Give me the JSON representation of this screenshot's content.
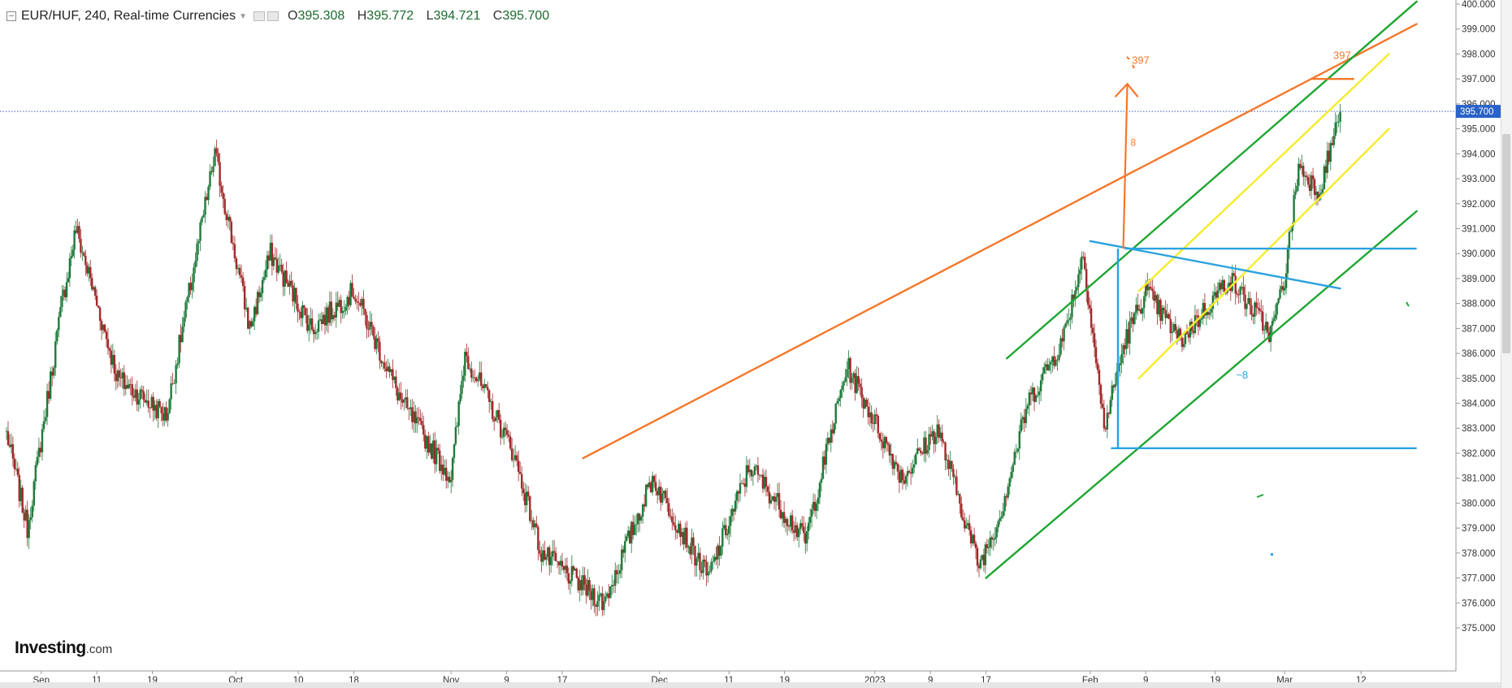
{
  "header": {
    "symbol": "EUR/HUF, 240, Real-time Currencies",
    "open_label": "O",
    "open": "395.308",
    "high_label": "H",
    "high": "395.772",
    "low_label": "L",
    "low": "394.721",
    "close_label": "C",
    "close": "395.700"
  },
  "logo": {
    "main": "Investing",
    "domain": ".com"
  },
  "chart_data": {
    "type": "candlestick",
    "title": "EUR/HUF, 240, Real-time Currencies",
    "ylim": [
      374.6,
      400.2
    ],
    "y_ticks": [
      "375.000",
      "376.000",
      "377.000",
      "378.000",
      "379.000",
      "380.000",
      "381.000",
      "382.000",
      "383.000",
      "384.000",
      "385.000",
      "386.000",
      "387.000",
      "388.000",
      "389.000",
      "390.000",
      "391.000",
      "392.000",
      "393.000",
      "394.000",
      "395.000",
      "396.000",
      "397.000",
      "398.000",
      "399.000",
      "400.000"
    ],
    "x_ticks": [
      "Sep",
      "11",
      "19",
      "Oct",
      "10",
      "18",
      "Nov",
      "9",
      "17",
      "Dec",
      "11",
      "19",
      "2023",
      "9",
      "17",
      "Feb",
      "9",
      "19",
      "Mar",
      "12"
    ],
    "last_price": "395.700",
    "colors": {
      "up": "#1f7a3a",
      "down": "#a12a2a",
      "orange": "#f5772a",
      "green": "#1ea632",
      "yellow": "#f4ec2a",
      "blue": "#2aa2e0",
      "price_line": "#3a5fbf"
    },
    "key_points": [
      {
        "x": "Aug 29",
        "y": 382.8
      },
      {
        "x": "Sep 1",
        "y": 379.0
      },
      {
        "x": "Sep 6",
        "y": 388.0
      },
      {
        "x": "Sep 8",
        "y": 391.0
      },
      {
        "x": "Sep 14",
        "y": 385.0
      },
      {
        "x": "Sep 21",
        "y": 383.5
      },
      {
        "x": "Sep 28",
        "y": 394.0
      },
      {
        "x": "Oct 3",
        "y": 387.0
      },
      {
        "x": "Oct 6",
        "y": 390.0
      },
      {
        "x": "Oct 12",
        "y": 387.0
      },
      {
        "x": "Oct 18",
        "y": 388.5
      },
      {
        "x": "Oct 25",
        "y": 384.0
      },
      {
        "x": "Nov 1",
        "y": 381.0
      },
      {
        "x": "Nov 3",
        "y": 386.0
      },
      {
        "x": "Nov 10",
        "y": 382.0
      },
      {
        "x": "Nov 14",
        "y": 378.0
      },
      {
        "x": "Nov 23",
        "y": 376.0
      },
      {
        "x": "Nov 30",
        "y": 381.0
      },
      {
        "x": "Dec 8",
        "y": 377.0
      },
      {
        "x": "Dec 14",
        "y": 381.5
      },
      {
        "x": "Dec 22",
        "y": 378.5
      },
      {
        "x": "Dec 28",
        "y": 385.5
      },
      {
        "x": "Jan 5",
        "y": 381.0
      },
      {
        "x": "Jan 10",
        "y": 383.0
      },
      {
        "x": "Jan 16",
        "y": 377.5
      },
      {
        "x": "Jan 19",
        "y": 379.5
      },
      {
        "x": "Jan 23",
        "y": 384.0
      },
      {
        "x": "Jan 28",
        "y": 386.5
      },
      {
        "x": "Jan 31",
        "y": 390.0
      },
      {
        "x": "Feb 3",
        "y": 383.0
      },
      {
        "x": "Feb 6",
        "y": 386.5
      },
      {
        "x": "Feb 9",
        "y": 388.5
      },
      {
        "x": "Feb 14",
        "y": 386.5
      },
      {
        "x": "Feb 21",
        "y": 389.0
      },
      {
        "x": "Feb 27",
        "y": 386.8
      },
      {
        "x": "Mar 1",
        "y": 389.0
      },
      {
        "x": "Mar 3",
        "y": 393.5
      },
      {
        "x": "Mar 6",
        "y": 392.5
      },
      {
        "x": "Mar 9",
        "y": 395.7
      }
    ],
    "annotations": [
      {
        "type": "trendline",
        "color": "orange",
        "from": {
          "x": "Nov 20",
          "y": 381.8
        },
        "to": {
          "x": "Mar 20",
          "y": 399.2
        }
      },
      {
        "type": "trendline",
        "color": "green",
        "from": {
          "x": "Jan 17",
          "y": 377.0
        },
        "to": {
          "x": "Mar 20",
          "y": 391.7
        }
      },
      {
        "type": "trendline",
        "color": "green",
        "from": {
          "x": "Jan 20",
          "y": 385.8
        },
        "to": {
          "x": "Mar 20",
          "y": 400.1
        }
      },
      {
        "type": "trendline",
        "color": "yellow",
        "from": {
          "x": "Feb 8",
          "y": 385.0
        },
        "to": {
          "x": "Mar 16",
          "y": 395.0
        }
      },
      {
        "type": "trendline",
        "color": "yellow",
        "from": {
          "x": "Feb 8",
          "y": 388.5
        },
        "to": {
          "x": "Mar 16",
          "y": 398.0
        }
      },
      {
        "type": "hline",
        "color": "blue",
        "y": 390.2,
        "from": "Feb 6",
        "to": "Mar 20"
      },
      {
        "type": "hline",
        "color": "blue",
        "y": 382.2,
        "from": "Feb 4",
        "to": "Mar 20"
      },
      {
        "type": "trendline",
        "color": "blue",
        "from": {
          "x": "Feb 1",
          "y": 390.5
        },
        "to": {
          "x": "Mar 9",
          "y": 388.6
        }
      },
      {
        "type": "vline",
        "color": "blue",
        "x": "Feb 5",
        "from": 382.2,
        "to": 390.2
      },
      {
        "type": "arrow",
        "color": "orange",
        "x": "Feb 6",
        "from": 390.2,
        "to": 396.8,
        "label": "8"
      },
      {
        "type": "label",
        "color": "orange",
        "text": "397",
        "x": "Feb 7",
        "y": 397.6
      },
      {
        "type": "label",
        "color": "orange",
        "text": "397",
        "x": "Mar 8",
        "y": 397.8
      },
      {
        "type": "hline",
        "color": "orange",
        "y": 397.0,
        "from": "Mar 5",
        "to": "Mar 11"
      },
      {
        "type": "label",
        "color": "blue",
        "text": "~8",
        "x": "Feb 22",
        "y": 385.0
      }
    ]
  }
}
